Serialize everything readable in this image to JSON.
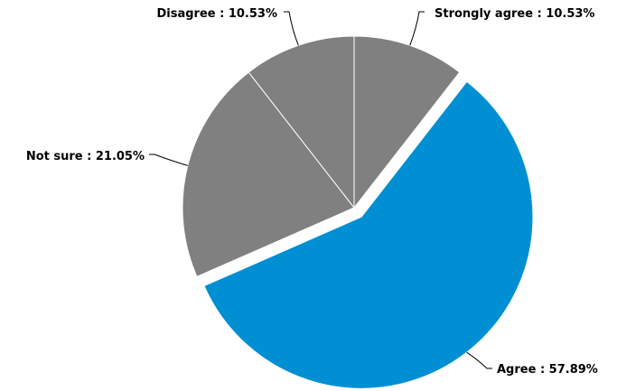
{
  "chart_data": {
    "type": "pie",
    "title": "",
    "slices": [
      {
        "name": "Strongly agree",
        "value": 10.53,
        "label": "Strongly agree : 10.53%",
        "color": "#808080",
        "exploded": false
      },
      {
        "name": "Agree",
        "value": 57.89,
        "label": "Agree : 57.89%",
        "color": "#008fd3",
        "exploded": true
      },
      {
        "name": "Not sure",
        "value": 21.05,
        "label": "Not sure : 21.05%",
        "color": "#808080",
        "exploded": false
      },
      {
        "name": "Disagree",
        "value": 10.53,
        "label": "Disagree : 10.53%",
        "color": "#808080",
        "exploded": false
      }
    ],
    "legend": "none",
    "start_angle": "top",
    "direction": "clockwise"
  }
}
